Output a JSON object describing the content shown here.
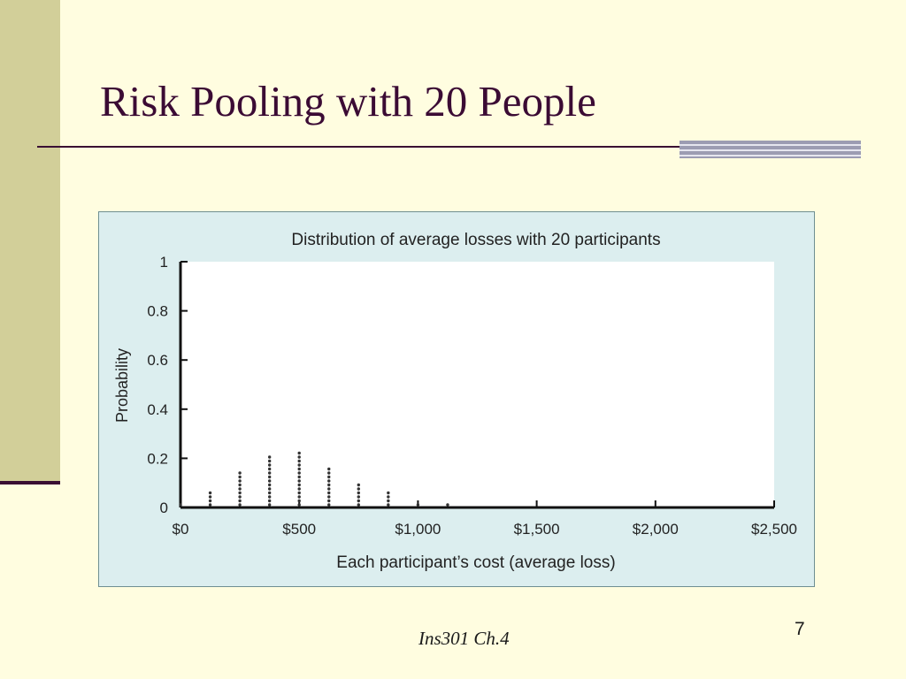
{
  "slide": {
    "title": "Risk Pooling with 20 People",
    "footer": "Ins301 Ch.4",
    "page_number": "7"
  },
  "chart_data": {
    "type": "scatter",
    "title": "Distribution of average losses with 20 participants",
    "xlabel": "Each participant’s cost (average loss)",
    "ylabel": "Probability",
    "xlim": [
      0,
      2500
    ],
    "ylim": [
      0,
      1
    ],
    "x_ticks": [
      0,
      500,
      1000,
      1500,
      2000,
      2500
    ],
    "x_tick_labels": [
      "$0",
      "$500",
      "$1,000",
      "$1,500",
      "$2,000",
      "$2,500"
    ],
    "y_ticks": [
      0,
      0.2,
      0.4,
      0.6,
      0.8,
      1
    ],
    "y_tick_labels": [
      "0",
      "0.2",
      "0.4",
      "0.6",
      "0.8",
      "1"
    ],
    "grid": false,
    "marker": "stacked dots",
    "x": [
      0,
      125,
      250,
      375,
      500,
      625,
      750,
      875,
      1000,
      1125
    ],
    "y": [
      0.01,
      0.06,
      0.14,
      0.21,
      0.22,
      0.16,
      0.1,
      0.06,
      0.02,
      0.01
    ],
    "colors": {
      "panel_background": "#dceeef",
      "plot_background": "#ffffff",
      "marks": "#333333"
    }
  }
}
